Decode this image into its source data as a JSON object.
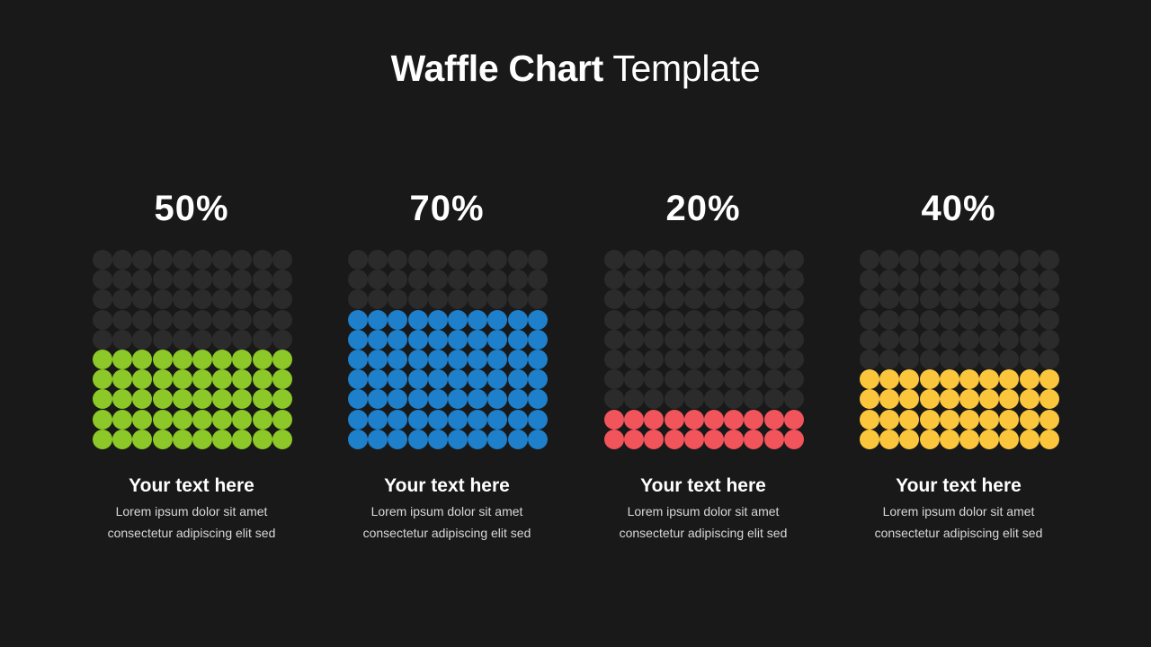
{
  "title": {
    "bold": "Waffle Chart",
    "light": "Template"
  },
  "colors": {
    "background": "#191919",
    "empty_dot": "#2b2b2b"
  },
  "chart_data": {
    "type": "waffle",
    "grid": {
      "rows": 10,
      "cols": 10
    },
    "items": [
      {
        "percent_label": "50%",
        "value": 50,
        "color": "#8cc828",
        "caption": "Your text here",
        "desc_line1": "Lorem ipsum dolor sit amet",
        "desc_line2": "consectetur adipiscing elit sed"
      },
      {
        "percent_label": "70%",
        "value": 70,
        "color": "#1e7fca",
        "caption": "Your text here",
        "desc_line1": "Lorem ipsum dolor sit amet",
        "desc_line2": "consectetur adipiscing elit sed"
      },
      {
        "percent_label": "20%",
        "value": 20,
        "color": "#f2545c",
        "caption": "Your text here",
        "desc_line1": "Lorem ipsum dolor sit amet",
        "desc_line2": "consectetur adipiscing elit sed"
      },
      {
        "percent_label": "40%",
        "value": 40,
        "color": "#fcc63c",
        "caption": "Your text here",
        "desc_line1": "Lorem ipsum dolor sit amet",
        "desc_line2": "consectetur adipiscing elit sed"
      }
    ]
  }
}
